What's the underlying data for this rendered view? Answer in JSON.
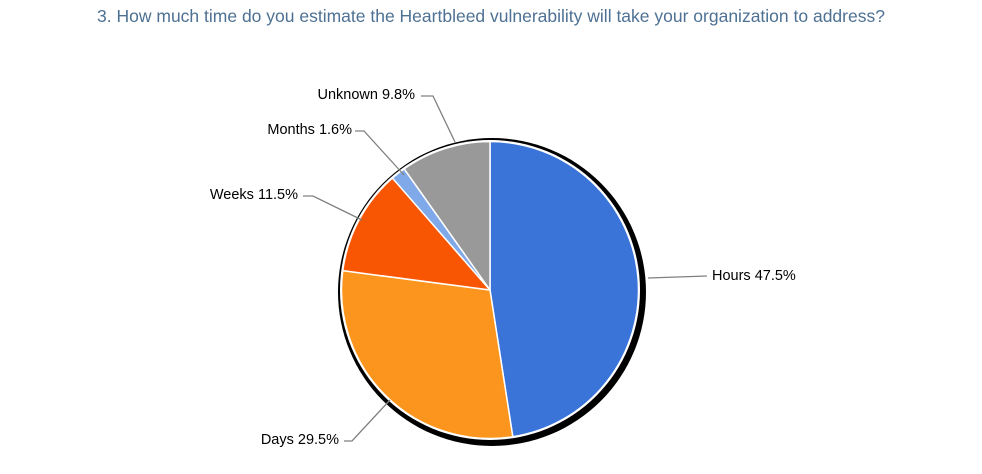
{
  "page": {
    "background_color": "#ffffff"
  },
  "chart_data": {
    "type": "pie",
    "title": "3. How much time do you estimate the Heartbleed vulnerability will take your organization to address?",
    "title_color": "#4e7193",
    "start_angle": "top",
    "direction": "clockwise",
    "legend": "none",
    "outline_ring_color": "#000000",
    "slice_separator_color": "#ffffff",
    "leader_line_color": "#808080",
    "label_color": "#000000",
    "slices": [
      {
        "label": "Hours",
        "value": 47.5,
        "display": "Hours 47.5%",
        "color": "#3a74d8"
      },
      {
        "label": "Days",
        "value": 29.5,
        "display": "Days 29.5%",
        "color": "#fb951d"
      },
      {
        "label": "Weeks",
        "value": 11.5,
        "display": "Weeks 11.5%",
        "color": "#f95604"
      },
      {
        "label": "Months",
        "value": 1.6,
        "display": "Months 1.6%",
        "color": "#80a9e9"
      },
      {
        "label": "Unknown",
        "value": 9.8,
        "display": "Unknown 9.8%",
        "color": "#999999"
      }
    ]
  }
}
